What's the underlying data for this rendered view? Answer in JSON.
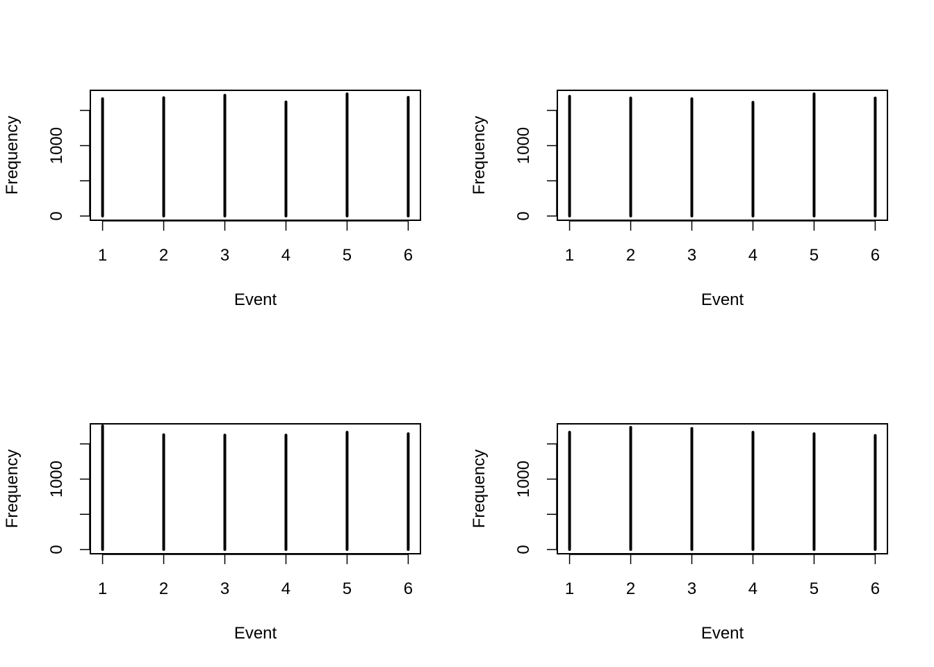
{
  "chart_data": [
    {
      "type": "bar",
      "x": [
        1,
        2,
        3,
        4,
        5,
        6
      ],
      "values": [
        1665,
        1680,
        1715,
        1620,
        1735,
        1685
      ],
      "xlabel": "Event",
      "ylabel": "Frequency",
      "xticks": [
        "1",
        "2",
        "3",
        "4",
        "5",
        "6"
      ],
      "yticks": [
        0,
        500,
        1000,
        1500
      ],
      "ytick_labels": [
        "0",
        "",
        "1000",
        ""
      ],
      "xlim": [
        0.8,
        6.2
      ],
      "ylim": [
        -60,
        1785
      ],
      "grid": false
    },
    {
      "type": "bar",
      "x": [
        1,
        2,
        3,
        4,
        5,
        6
      ],
      "values": [
        1700,
        1675,
        1665,
        1615,
        1735,
        1675
      ],
      "xlabel": "Event",
      "ylabel": "Frequency",
      "xticks": [
        "1",
        "2",
        "3",
        "4",
        "5",
        "6"
      ],
      "yticks": [
        0,
        500,
        1000,
        1500
      ],
      "ytick_labels": [
        "0",
        "",
        "1000",
        ""
      ],
      "xlim": [
        0.8,
        6.2
      ],
      "ylim": [
        -60,
        1785
      ],
      "grid": false
    },
    {
      "type": "bar",
      "x": [
        1,
        2,
        3,
        4,
        5,
        6
      ],
      "values": [
        1755,
        1630,
        1625,
        1625,
        1665,
        1645
      ],
      "xlabel": "Event",
      "ylabel": "Frequency",
      "xticks": [
        "1",
        "2",
        "3",
        "4",
        "5",
        "6"
      ],
      "yticks": [
        0,
        500,
        1000,
        1500
      ],
      "ytick_labels": [
        "0",
        "",
        "1000",
        ""
      ],
      "xlim": [
        0.8,
        6.2
      ],
      "ylim": [
        -60,
        1785
      ],
      "grid": false
    },
    {
      "type": "bar",
      "x": [
        1,
        2,
        3,
        4,
        5,
        6
      ],
      "values": [
        1665,
        1735,
        1720,
        1665,
        1645,
        1620
      ],
      "xlabel": "Event",
      "ylabel": "Frequency",
      "xticks": [
        "1",
        "2",
        "3",
        "4",
        "5",
        "6"
      ],
      "yticks": [
        0,
        500,
        1000,
        1500
      ],
      "ytick_labels": [
        "0",
        "",
        "1000",
        ""
      ],
      "xlim": [
        0.8,
        6.2
      ],
      "ylim": [
        -60,
        1785
      ],
      "grid": false
    }
  ]
}
